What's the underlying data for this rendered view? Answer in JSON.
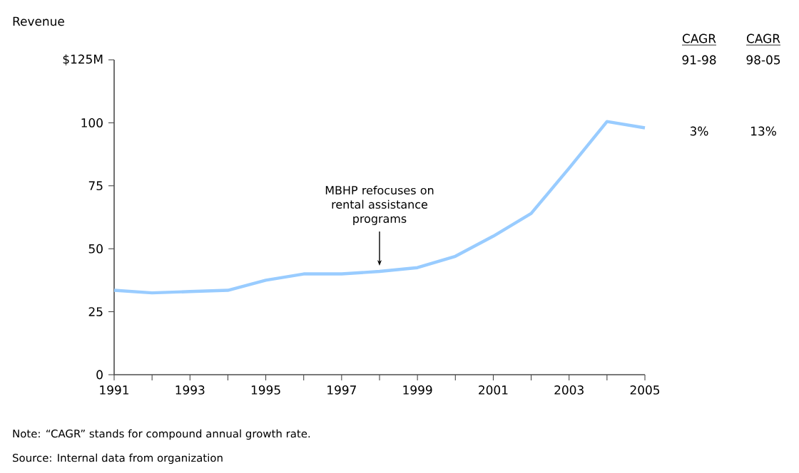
{
  "chart_data": {
    "type": "line",
    "ylabel": "Revenue",
    "x": [
      1991,
      1992,
      1993,
      1994,
      1995,
      1996,
      1997,
      1998,
      1999,
      2000,
      2001,
      2002,
      2003,
      2004,
      2005
    ],
    "series": [
      {
        "color": "#99ccff",
        "values": [
          33.5,
          32.5,
          33,
          33.5,
          37.5,
          40,
          40,
          41,
          42.5,
          47,
          55,
          64,
          82,
          100.5,
          98
        ]
      }
    ],
    "xlim": [
      1991,
      2005
    ],
    "xticks": [
      1991,
      {
        "value": 1992,
        "label": null
      },
      1993,
      {
        "value": 1994,
        "label": null
      },
      1995,
      {
        "value": 1996,
        "label": null
      },
      1997,
      {
        "value": 1998,
        "label": null
      },
      1999,
      {
        "value": 2000,
        "label": null
      },
      2001,
      {
        "value": 2002,
        "label": null
      },
      2003,
      {
        "value": 2004,
        "label": null
      },
      2005
    ],
    "ylim": [
      0,
      125
    ],
    "yticks": [
      0,
      25,
      50,
      75,
      100,
      {
        "value": 125,
        "label": "$125M"
      }
    ],
    "grid": false,
    "marker": "none",
    "line_style": "solid",
    "annotations": [
      {
        "text": "MBHP refocuses on rental assistance programs",
        "x": 1998,
        "y": 41
      },
      "CAGR",
      "91-98",
      "3%",
      "CAGR",
      "98-05",
      "13%",
      "Note: “CAGR” stands for compound annual growth rate.",
      "Source: Internal data from organization"
    ]
  }
}
